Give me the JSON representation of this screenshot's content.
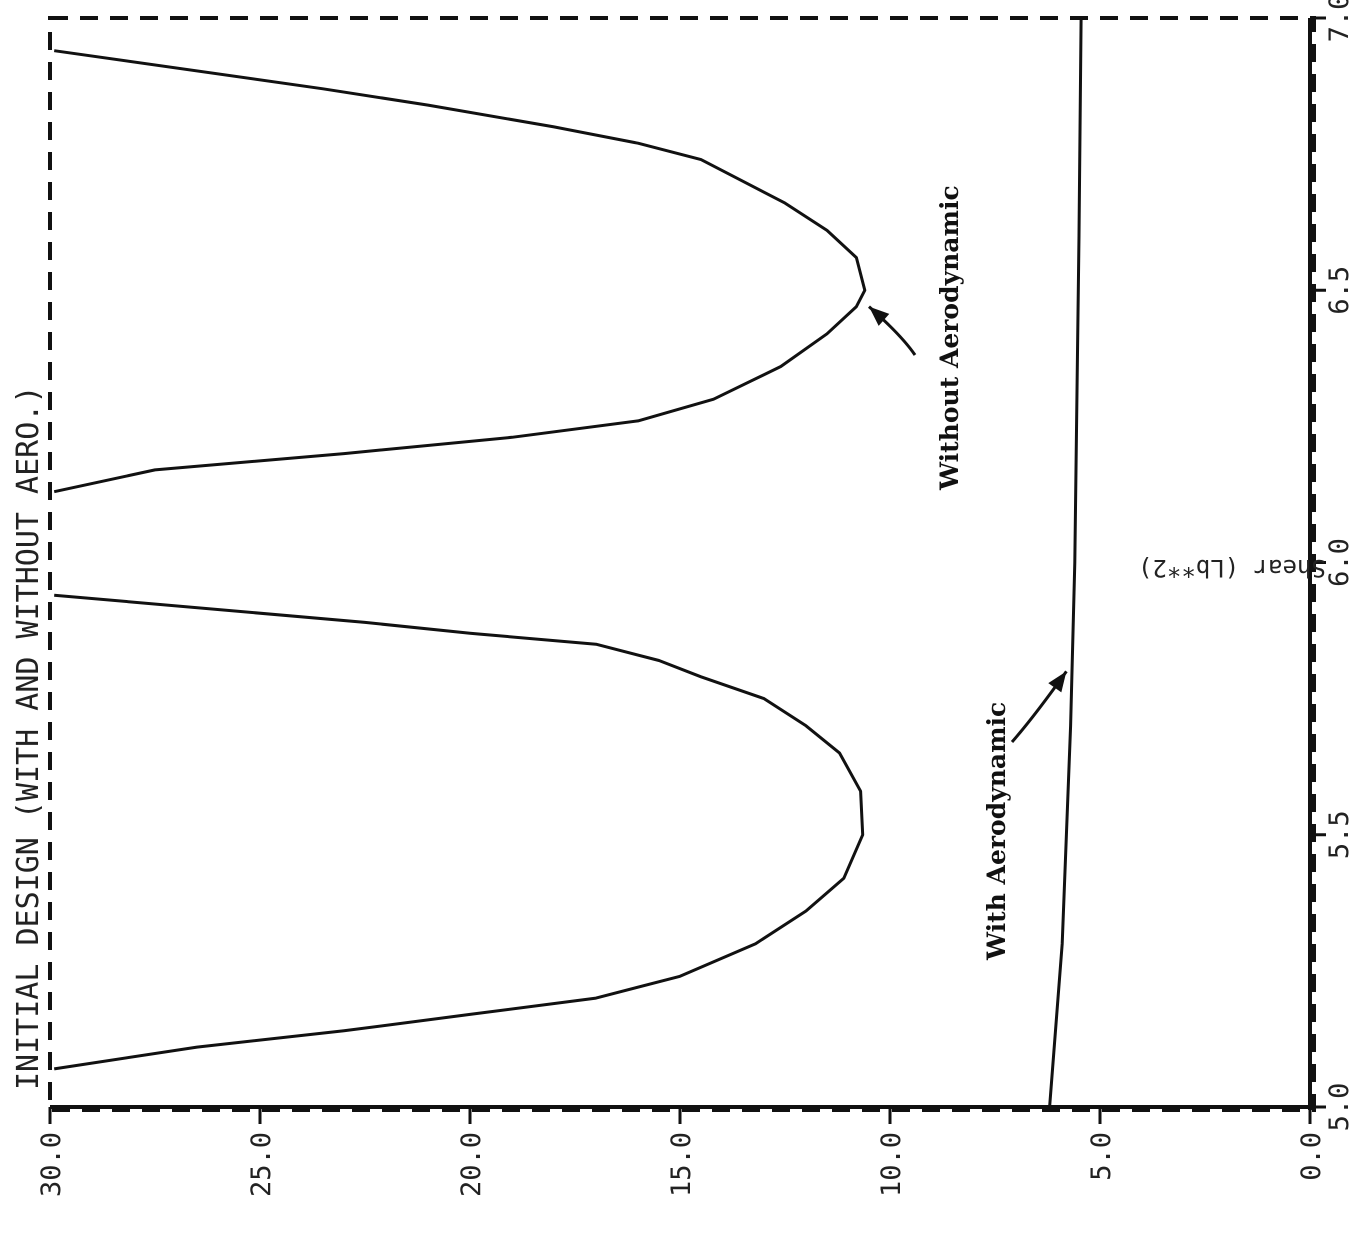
{
  "chart_data": {
    "type": "line",
    "orientation": "rotated-90",
    "title": "INITIAL DESIGN (WITH AND WITHOUT AERO.)",
    "ylabel": "Shear (Lb**2)",
    "xlabel": "",
    "xlim": [
      5.0,
      7.0
    ],
    "ylim": [
      0.0,
      30.0
    ],
    "x_ticks": [
      "5.0",
      "5.5",
      "6.0",
      "6.5",
      "7.0"
    ],
    "y_ticks": [
      "0.0",
      "5.0",
      "10.0",
      "15.0",
      "20.0",
      "25.0",
      "30.0"
    ],
    "grid": false,
    "series": [
      {
        "name": "Without Aerodynamic",
        "segments": [
          {
            "x": [
              5.07,
              5.11,
              5.14,
              5.17,
              5.2,
              5.24,
              5.3,
              5.36,
              5.42,
              5.5,
              5.58,
              5.65,
              5.7,
              5.75,
              5.79,
              5.82,
              5.85,
              5.87,
              5.89,
              5.94
            ],
            "y": [
              29.9,
              26.5,
              23.0,
              20.0,
              17.0,
              15.0,
              13.2,
              12.0,
              11.1,
              10.65,
              10.7,
              11.2,
              12.0,
              13.0,
              14.5,
              15.5,
              17.0,
              20.0,
              22.5,
              29.9
            ]
          },
          {
            "x": [
              6.13,
              6.17,
              6.2,
              6.23,
              6.26,
              6.3,
              6.36,
              6.42,
              6.47,
              6.5,
              6.56,
              6.61,
              6.66,
              6.7,
              6.74,
              6.77,
              6.8,
              6.84,
              6.87,
              6.94
            ],
            "y": [
              29.9,
              27.5,
              23.0,
              19.0,
              16.0,
              14.2,
              12.6,
              11.5,
              10.8,
              10.6,
              10.8,
              11.5,
              12.5,
              13.5,
              14.5,
              16.0,
              18.0,
              21.0,
              23.5,
              29.9
            ]
          }
        ]
      },
      {
        "name": "With Aerodynamic",
        "segments": [
          {
            "x": [
              5.0,
              5.1,
              5.3,
              5.5,
              5.7,
              6.0,
              6.3,
              6.6,
              7.0
            ],
            "y": [
              6.2,
              6.1,
              5.9,
              5.8,
              5.7,
              5.6,
              5.55,
              5.5,
              5.45
            ]
          }
        ]
      }
    ],
    "annotations": [
      {
        "text": "Without Aerodynamic",
        "points_to": {
          "x": 6.47,
          "y": 10.5
        }
      },
      {
        "text": "With Aerodynamic",
        "points_to": {
          "x": 5.8,
          "y": 5.8
        }
      }
    ]
  }
}
